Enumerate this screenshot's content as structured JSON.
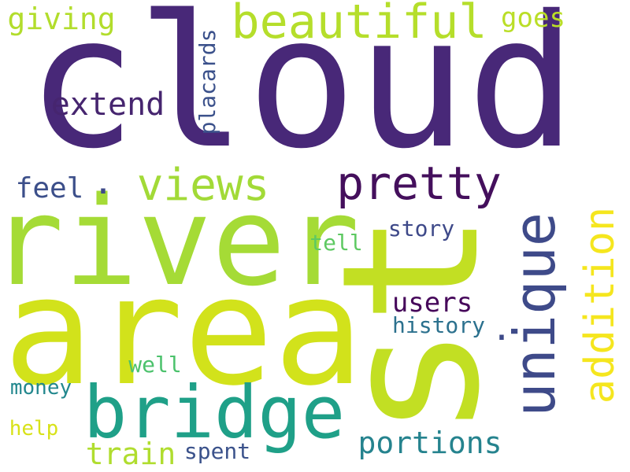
{
  "words": [
    {
      "id": "cloud",
      "text": "cloud",
      "color": "#482878"
    },
    {
      "id": "river",
      "text": "river",
      "color": "#a5db36"
    },
    {
      "id": "area",
      "text": "area",
      "color": "#d2e21b"
    },
    {
      "id": "st",
      "text": "st",
      "color": "#c2df23"
    },
    {
      "id": "bridge",
      "text": "bridge",
      "color": "#1fa088"
    },
    {
      "id": "beautiful",
      "text": "beautiful",
      "color": "#b5de2b"
    },
    {
      "id": "unique",
      "text": "unique",
      "color": "#3e4a89"
    },
    {
      "id": "pretty",
      "text": "pretty",
      "color": "#440f5c"
    },
    {
      "id": "views",
      "text": "views",
      "color": "#a2da37"
    },
    {
      "id": "addition",
      "text": "addition",
      "color": "#f5e61e"
    },
    {
      "id": "extend",
      "text": "extend",
      "color": "#46256f"
    },
    {
      "id": "giving",
      "text": "giving",
      "color": "#b2dd2c"
    },
    {
      "id": "goes",
      "text": "goes",
      "color": "#bade27"
    },
    {
      "id": "placards",
      "text": "placards",
      "color": "#3b518b"
    },
    {
      "id": "feel",
      "text": "feel",
      "color": "#3c4f8a"
    },
    {
      "id": "users",
      "text": "users",
      "color": "#46075a"
    },
    {
      "id": "portions",
      "text": "portions",
      "color": "#25838e"
    },
    {
      "id": "story",
      "text": "story",
      "color": "#3e4989"
    },
    {
      "id": "tell",
      "text": "tell",
      "color": "#5ec962"
    },
    {
      "id": "history",
      "text": "history",
      "color": "#2c718e"
    },
    {
      "id": "well",
      "text": "well",
      "color": "#4cc26c"
    },
    {
      "id": "money",
      "text": "money",
      "color": "#23888e"
    },
    {
      "id": "help",
      "text": "help",
      "color": "#d8e219"
    },
    {
      "id": "train",
      "text": "train",
      "color": "#b0dd2f"
    },
    {
      "id": "spent",
      "text": "spent",
      "color": "#3b528b"
    },
    {
      "id": "dot",
      "text": ".",
      "color": "#3e4a89"
    }
  ]
}
